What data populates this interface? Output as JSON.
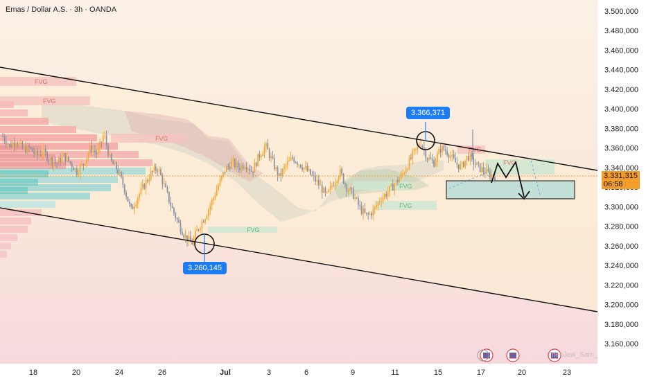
{
  "header": {
    "title": "Emas / Dollar A.S. · 3h · OANDA"
  },
  "price_labels": {
    "high": "3.366,371",
    "low": "3.260,145"
  },
  "current": {
    "price": "3.331,315",
    "countdown": "06:58"
  },
  "fvg_label": "FVG",
  "watermark": "TheoJew_Sam_",
  "colors": {
    "up": "#f6a935",
    "down": "#8a93a8",
    "accent": "#1e7cf2",
    "zone_fill": "#b8dfd8"
  },
  "chart_data": {
    "type": "candlestick",
    "title": "",
    "xlabel": "",
    "ylabel": "",
    "ylim": [
      3150000,
      3510000
    ],
    "y_ticks": [
      "3.500,000",
      "3.480,000",
      "3.460,000",
      "3.440,000",
      "3.420,000",
      "3.400,000",
      "3.380,000",
      "3.360,000",
      "3.340,000",
      "3.320,000",
      "3.300,000",
      "3.280,000",
      "3.260,000",
      "3.240,000",
      "3.220,000",
      "3.200,000",
      "3.180,000",
      "3.160,000"
    ],
    "x_ticks": [
      "18",
      "20",
      "24",
      "26",
      "Jul",
      "3",
      "6",
      "9",
      "11",
      "15",
      "17",
      "20",
      "23"
    ],
    "swing_points": [
      {
        "label": "3.260,145",
        "value": 3260145
      },
      {
        "label": "3.366,371",
        "value": 3366371
      }
    ],
    "current_price": 3331315,
    "close_path": [
      3372000,
      3362000,
      3368000,
      3358000,
      3360000,
      3352000,
      3356000,
      3348000,
      3344000,
      3352000,
      3345000,
      3336000,
      3344000,
      3360000,
      3354000,
      3374000,
      3346000,
      3338000,
      3320000,
      3296000,
      3310000,
      3322000,
      3334000,
      3340000,
      3320000,
      3300000,
      3284000,
      3270000,
      3262000,
      3278000,
      3290000,
      3305000,
      3322000,
      3338000,
      3345000,
      3340000,
      3344000,
      3336000,
      3352000,
      3362000,
      3346000,
      3330000,
      3342000,
      3350000,
      3344000,
      3338000,
      3330000,
      3322000,
      3310000,
      3324000,
      3336000,
      3320000,
      3312000,
      3298000,
      3290000,
      3296000,
      3308000,
      3314000,
      3322000,
      3330000,
      3342000,
      3355000,
      3366000,
      3350000,
      3345000,
      3360000,
      3356000,
      3346000,
      3340000,
      3352000,
      3344000,
      3338000,
      3334000,
      3331000
    ],
    "channel": "descending",
    "projection": "down toward demand zone"
  }
}
